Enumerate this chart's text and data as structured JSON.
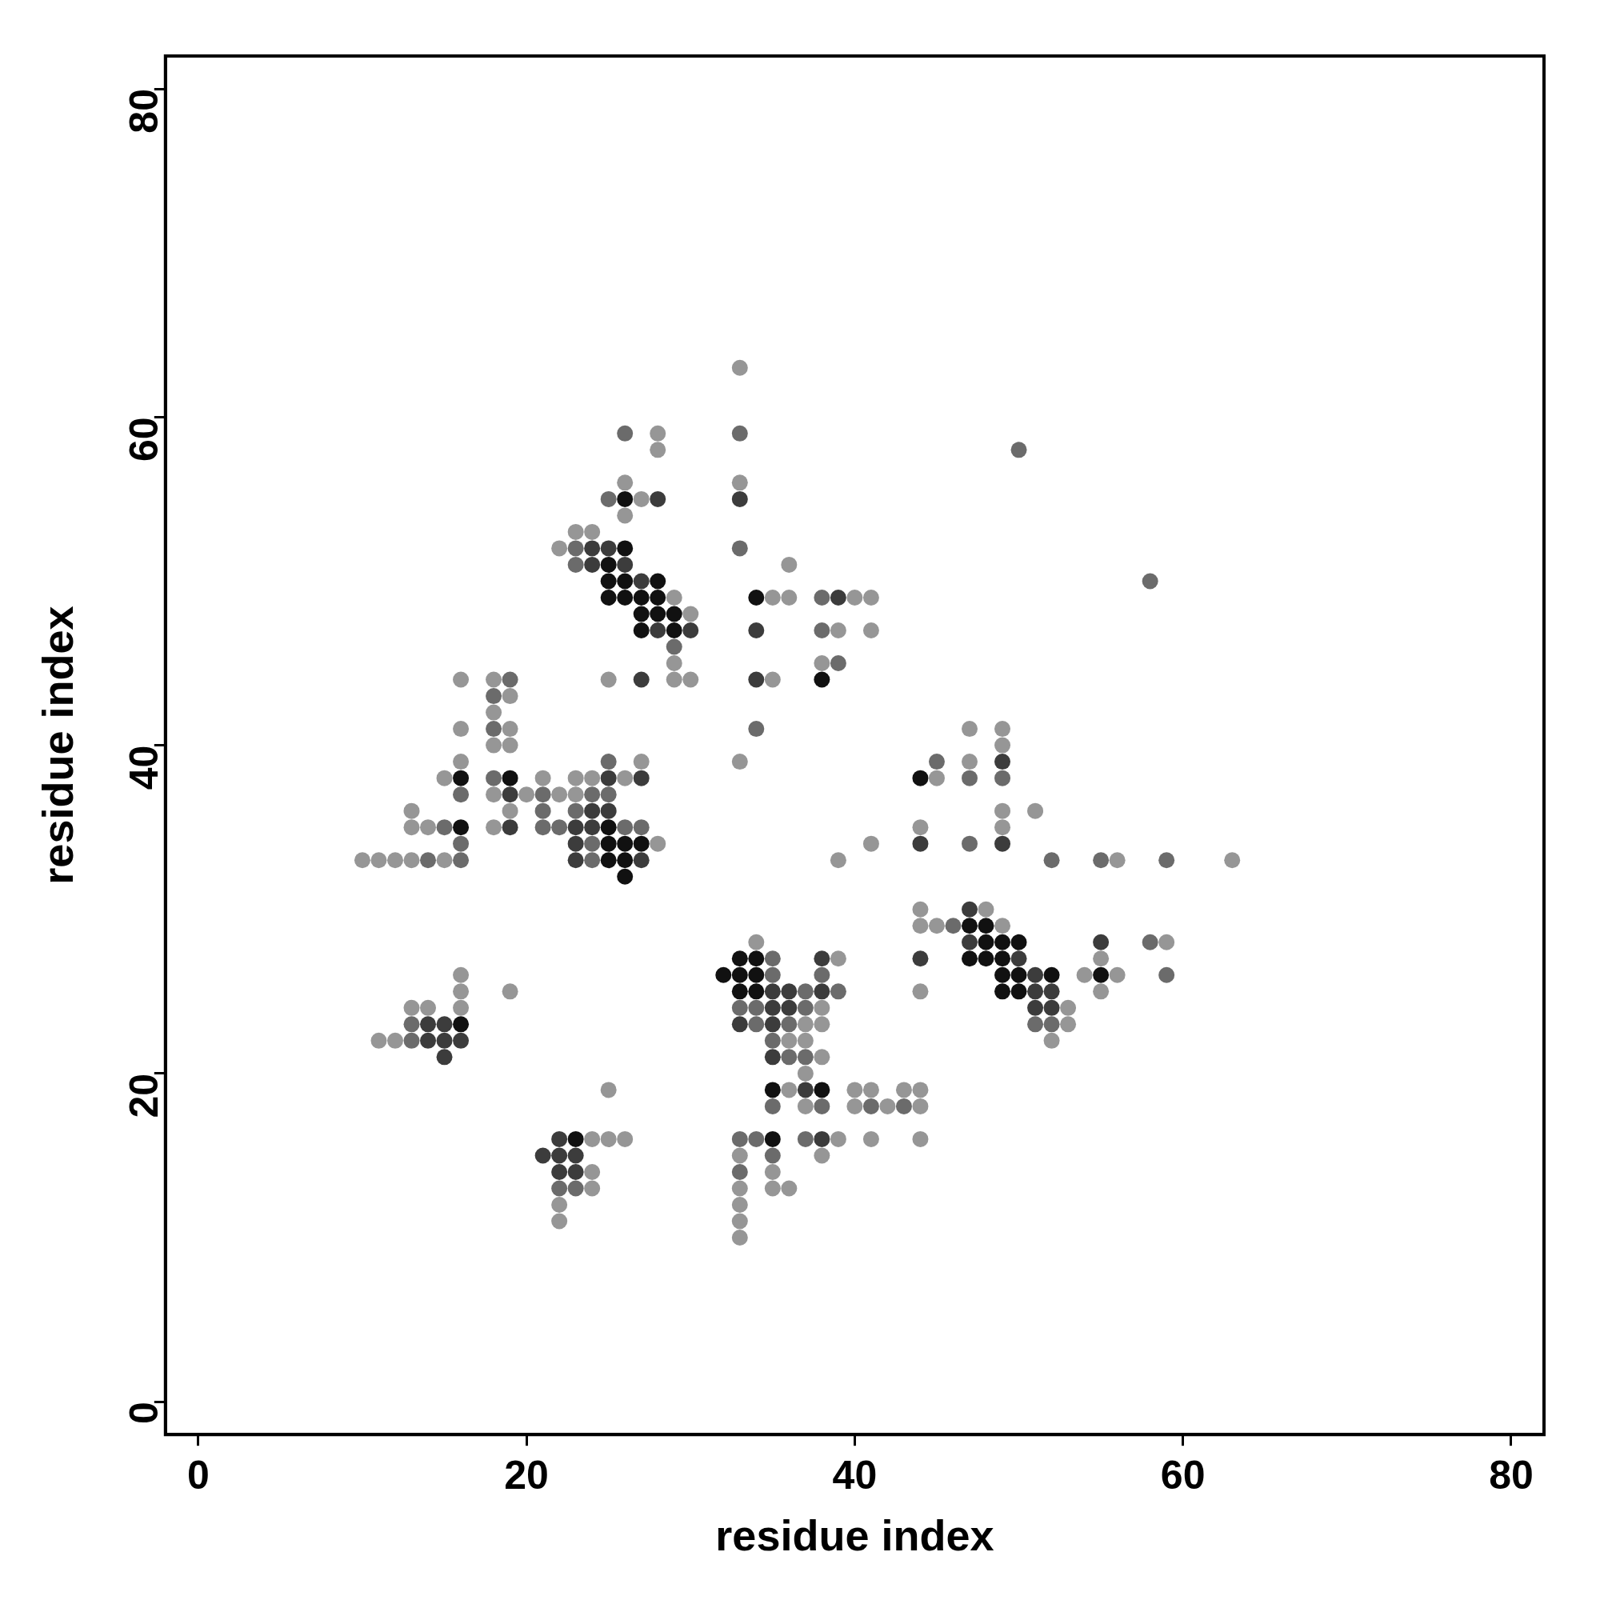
{
  "chart_data": {
    "type": "scatter",
    "xlabel": "residue index",
    "ylabel": "residue index",
    "xlim": [
      -2,
      82
    ],
    "ylim": [
      -2,
      82
    ],
    "xticks": [
      0,
      20,
      40,
      60,
      80
    ],
    "yticks": [
      0,
      20,
      40,
      60,
      80
    ],
    "marker": "circle",
    "series": [
      {
        "color": "#969696",
        "x": [
          33,
          28,
          28,
          26,
          33,
          27,
          26,
          23,
          24,
          22,
          36,
          29,
          35,
          36,
          40,
          41,
          30,
          39,
          41,
          29,
          38,
          16,
          18,
          25,
          29,
          30,
          35,
          19,
          18,
          16,
          19,
          47,
          49,
          18,
          19,
          49,
          16,
          27,
          33,
          47,
          15,
          21,
          23,
          24,
          26,
          45,
          18,
          20,
          22,
          23,
          13,
          19,
          49,
          51,
          13,
          14,
          18,
          44,
          49,
          28,
          41,
          10,
          11,
          12,
          13,
          15,
          39,
          56,
          63,
          44,
          48,
          44,
          45,
          49,
          59,
          34,
          39,
          55,
          54,
          56,
          44,
          55,
          38,
          53,
          37,
          38,
          53,
          36,
          37,
          52,
          38,
          37,
          16,
          16,
          19,
          13,
          14,
          16,
          11,
          12,
          25,
          36,
          40,
          41,
          43,
          44,
          37,
          40,
          42,
          44,
          24,
          25,
          26,
          39,
          41,
          44,
          33,
          38,
          24,
          35,
          24,
          33,
          35,
          36,
          22,
          33,
          22,
          33,
          33
        ],
        "values": [
          63,
          59,
          58,
          56,
          56,
          55,
          54,
          53,
          53,
          52,
          51,
          49,
          49,
          49,
          49,
          49,
          48,
          47,
          47,
          45,
          45,
          44,
          44,
          44,
          44,
          44,
          44,
          43,
          42,
          41,
          41,
          41,
          41,
          40,
          40,
          40,
          39,
          39,
          39,
          39,
          38,
          38,
          38,
          38,
          38,
          38,
          37,
          37,
          37,
          37,
          36,
          36,
          36,
          36,
          35,
          35,
          35,
          35,
          35,
          34,
          34,
          33,
          33,
          33,
          33,
          33,
          33,
          33,
          33,
          30,
          30,
          29,
          29,
          29,
          28,
          28,
          27,
          27,
          26,
          26,
          25,
          25,
          24,
          24,
          23,
          23,
          23,
          22,
          22,
          22,
          21,
          20,
          26,
          25,
          25,
          24,
          24,
          24,
          22,
          22,
          19,
          19,
          19,
          19,
          19,
          19,
          18,
          18,
          18,
          18,
          16,
          16,
          16,
          16,
          16,
          16,
          15,
          15,
          14,
          14,
          13,
          13,
          13,
          13,
          12,
          12,
          11,
          11,
          10
        ]
      },
      {
        "color": "#6b6b6b",
        "x": [
          26,
          33,
          25,
          23,
          33,
          23,
          58,
          50,
          38,
          38,
          29,
          39,
          19,
          18,
          18,
          34,
          16,
          21,
          24,
          25,
          25,
          18,
          47,
          49,
          45,
          15,
          21,
          23,
          21,
          22,
          26,
          27,
          16,
          24,
          14,
          16,
          24,
          52,
          55,
          59,
          47,
          46,
          58,
          35,
          35,
          38,
          59,
          37,
          39,
          33,
          34,
          37,
          34,
          36,
          51,
          52,
          35,
          36,
          37,
          13,
          13,
          35,
          38,
          41,
          43,
          33,
          34,
          37,
          35,
          22,
          23,
          33
        ],
        "values": [
          59,
          59,
          55,
          52,
          52,
          51,
          50,
          58,
          49,
          47,
          46,
          45,
          44,
          43,
          41,
          41,
          37,
          37,
          37,
          37,
          39,
          38,
          38,
          38,
          39,
          35,
          36,
          36,
          35,
          35,
          35,
          35,
          34,
          34,
          33,
          33,
          33,
          33,
          33,
          33,
          34,
          29,
          28,
          27,
          26,
          26,
          26,
          25,
          25,
          24,
          24,
          24,
          23,
          23,
          23,
          23,
          22,
          21,
          21,
          23,
          22,
          18,
          18,
          18,
          18,
          16,
          16,
          16,
          15,
          13,
          13,
          14
        ]
      },
      {
        "color": "#3c3c3c",
        "x": [
          28,
          33,
          24,
          25,
          24,
          26,
          27,
          28,
          30,
          34,
          27,
          34,
          19,
          24,
          25,
          25,
          27,
          19,
          23,
          24,
          23,
          23,
          27,
          44,
          49,
          49,
          47,
          47,
          55,
          38,
          44,
          50,
          51,
          35,
          36,
          38,
          51,
          52,
          35,
          36,
          51,
          52,
          33,
          35,
          14,
          15,
          14,
          15,
          16,
          15,
          35,
          37,
          38,
          22,
          21,
          22,
          23,
          22,
          23,
          39
        ],
        "values": [
          55,
          55,
          52,
          52,
          51,
          51,
          50,
          47,
          47,
          47,
          44,
          44,
          37,
          36,
          36,
          38,
          38,
          35,
          35,
          35,
          34,
          33,
          33,
          34,
          34,
          39,
          30,
          28,
          28,
          27,
          27,
          27,
          26,
          25,
          25,
          25,
          25,
          25,
          24,
          24,
          24,
          24,
          23,
          23,
          23,
          23,
          22,
          22,
          22,
          21,
          21,
          19,
          16,
          16,
          15,
          15,
          15,
          14,
          14,
          49
        ]
      },
      {
        "color": "#111111",
        "x": [
          26,
          26,
          25,
          26,
          28,
          25,
          26,
          27,
          28,
          34,
          27,
          28,
          29,
          27,
          29,
          38,
          16,
          19,
          44,
          16,
          25,
          25,
          26,
          27,
          25,
          26,
          26,
          47,
          48,
          48,
          49,
          50,
          33,
          34,
          47,
          48,
          49,
          32,
          33,
          34,
          49,
          50,
          52,
          55,
          33,
          34,
          49,
          50,
          16,
          35,
          38,
          23,
          35,
          25
        ],
        "values": [
          55,
          52,
          50,
          50,
          50,
          49,
          49,
          49,
          49,
          49,
          48,
          48,
          48,
          47,
          47,
          44,
          38,
          38,
          38,
          35,
          35,
          34,
          34,
          34,
          33,
          33,
          32,
          29,
          29,
          28,
          28,
          28,
          27,
          27,
          27,
          27,
          27,
          26,
          26,
          26,
          26,
          26,
          26,
          26,
          25,
          25,
          25,
          25,
          23,
          19,
          19,
          16,
          16,
          51
        ]
      }
    ]
  }
}
